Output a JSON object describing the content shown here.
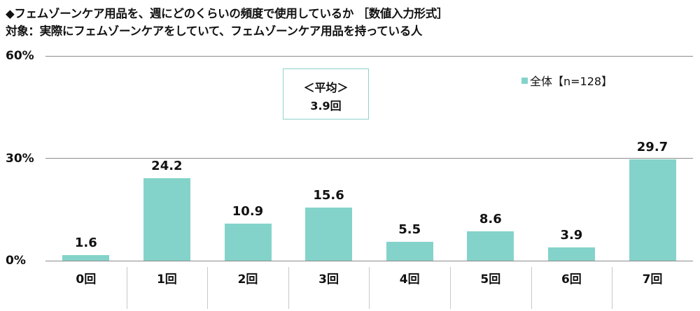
{
  "titles": {
    "line1": "◆フェムゾーンケア用品を、週にどのくらいの頻度で使用しているか ［数値入力形式］",
    "line2": "対象：実際にフェムゾーンケアをしていて、フェムゾーンケア用品を持っている人"
  },
  "average_box": {
    "label": "＜平均＞",
    "value": "3.9回"
  },
  "legend": {
    "label": "全体【n=128】",
    "color": "#84d3ca"
  },
  "y_axis": {
    "ticks": [
      "60%",
      "30%",
      "0%"
    ]
  },
  "chart_data": {
    "type": "bar",
    "title": "◆フェムゾーンケア用品を、週にどのくらいの頻度で使用しているか ［数値入力形式］",
    "subtitle": "対象：実際にフェムゾーンケアをしていて、フェムゾーンケア用品を持っている人",
    "categories": [
      "0回",
      "1回",
      "2回",
      "3回",
      "4回",
      "5回",
      "6回",
      "7回"
    ],
    "series": [
      {
        "name": "全体【n=128】",
        "values": [
          1.6,
          24.2,
          10.9,
          15.6,
          5.5,
          8.6,
          3.9,
          29.7
        ],
        "color": "#84d3ca"
      }
    ],
    "value_labels": [
      "1.6",
      "24.2",
      "10.9",
      "15.6",
      "5.5",
      "8.6",
      "3.9",
      "29.7"
    ],
    "xlabel": "",
    "ylabel": "",
    "ylim": [
      0,
      60
    ],
    "yticks": [
      "0%",
      "30%",
      "60%"
    ],
    "grid": true,
    "legend_position": "top-right",
    "annotations": [
      "＜平均＞ 3.9回"
    ]
  }
}
